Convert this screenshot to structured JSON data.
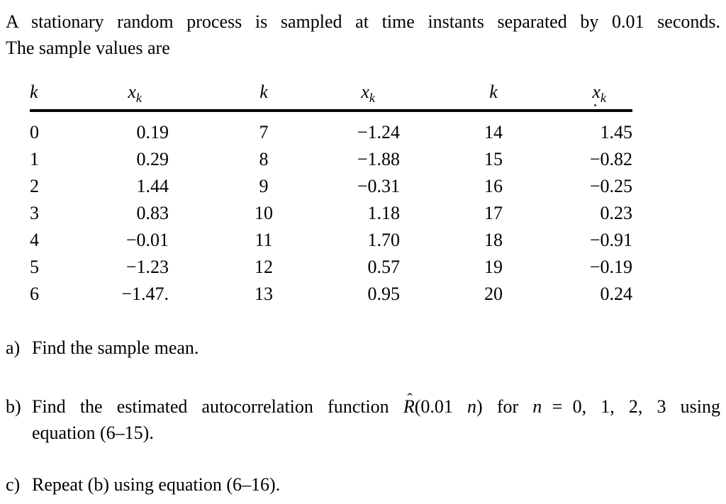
{
  "intro": {
    "line1": "A stationary random process is sampled at time instants separated by 0.01 seconds.",
    "line2": "The sample values are"
  },
  "table": {
    "header": {
      "k": "k",
      "x_base": "x",
      "x_sub": "k"
    },
    "rows": [
      [
        "0",
        "0.19",
        "7",
        "−1.24",
        "14",
        "1.45"
      ],
      [
        "1",
        "0.29",
        "8",
        "−1.88",
        "15",
        "−0.82"
      ],
      [
        "2",
        "1.44",
        "9",
        "−0.31",
        "16",
        "−0.25"
      ],
      [
        "3",
        "0.83",
        "10",
        "1.18",
        "17",
        "0.23"
      ],
      [
        "4",
        "−0.01",
        "11",
        "1.70",
        "18",
        "−0.91"
      ],
      [
        "5",
        "−1.23",
        "12",
        "0.57",
        "19",
        "−0.19"
      ],
      [
        "6",
        "−1.47.",
        "13",
        "0.95",
        "20",
        "0.24"
      ]
    ]
  },
  "questions": {
    "a": {
      "label": "a)",
      "text": "Find the sample mean."
    },
    "b": {
      "label": "b)",
      "line1_pre": "Find the estimated autocorrelation function ",
      "hat": "ˆ",
      "r": "R",
      "arg_open": "(0.01 ",
      "n_arg": "n",
      "arg_close": ") for ",
      "n_var": "n",
      "equals": "=",
      "values": "0, 1, 2, 3",
      "line1_post": " using",
      "line2": "equation (6–15)."
    },
    "c": {
      "label": "c)",
      "text": "Repeat (b) using equation (6–16)."
    }
  }
}
